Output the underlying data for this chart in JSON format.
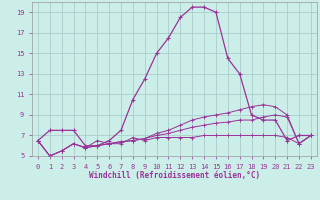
{
  "bg_color": "#cceee8",
  "grid_color": "#aacccc",
  "line_color": "#993399",
  "xlim": [
    -0.5,
    23.5
  ],
  "ylim": [
    5,
    20
  ],
  "xticks": [
    0,
    1,
    2,
    3,
    4,
    5,
    6,
    7,
    8,
    9,
    10,
    11,
    12,
    13,
    14,
    15,
    16,
    17,
    18,
    19,
    20,
    21,
    22,
    23
  ],
  "yticks": [
    5,
    7,
    9,
    11,
    13,
    15,
    17,
    19
  ],
  "xlabel": "Windchill (Refroidissement éolien,°C)",
  "series1": {
    "x": [
      0,
      1,
      2,
      3,
      4,
      5,
      6,
      7,
      8,
      9,
      10,
      11,
      12,
      13,
      14,
      15,
      16,
      17,
      18,
      19,
      20,
      21,
      22,
      23
    ],
    "y": [
      6.5,
      7.5,
      7.5,
      7.5,
      6.0,
      6.0,
      6.5,
      7.5,
      10.5,
      12.5,
      15.0,
      16.5,
      18.5,
      19.5,
      19.5,
      19.0,
      14.5,
      13.0,
      9.0,
      8.5,
      8.5,
      6.5,
      7.0,
      7.0
    ]
  },
  "series2": {
    "x": [
      0,
      1,
      2,
      3,
      4,
      5,
      6,
      7,
      8,
      9,
      10,
      11,
      12,
      13,
      14,
      15,
      16,
      17,
      18,
      19,
      20,
      21,
      22,
      23
    ],
    "y": [
      6.5,
      5.0,
      5.5,
      6.2,
      5.8,
      6.5,
      6.2,
      6.2,
      6.8,
      6.5,
      6.8,
      6.8,
      6.8,
      6.8,
      7.0,
      7.0,
      7.0,
      7.0,
      7.0,
      7.0,
      7.0,
      6.8,
      6.2,
      7.0
    ]
  },
  "series3": {
    "x": [
      0,
      1,
      2,
      3,
      4,
      5,
      6,
      7,
      8,
      9,
      10,
      11,
      12,
      13,
      14,
      15,
      16,
      17,
      18,
      19,
      20,
      21,
      22,
      23
    ],
    "y": [
      6.5,
      5.0,
      5.5,
      6.2,
      5.8,
      6.0,
      6.2,
      6.4,
      6.5,
      6.7,
      7.0,
      7.2,
      7.5,
      7.8,
      8.0,
      8.2,
      8.3,
      8.5,
      8.5,
      8.8,
      9.0,
      8.8,
      6.2,
      7.0
    ]
  },
  "series4": {
    "x": [
      0,
      1,
      2,
      3,
      4,
      5,
      6,
      7,
      8,
      9,
      10,
      11,
      12,
      13,
      14,
      15,
      16,
      17,
      18,
      19,
      20,
      21,
      22,
      23
    ],
    "y": [
      6.5,
      5.0,
      5.5,
      6.2,
      5.8,
      6.0,
      6.2,
      6.4,
      6.5,
      6.7,
      7.2,
      7.5,
      8.0,
      8.5,
      8.8,
      9.0,
      9.2,
      9.5,
      9.8,
      10.0,
      9.8,
      9.0,
      6.2,
      7.0
    ]
  }
}
